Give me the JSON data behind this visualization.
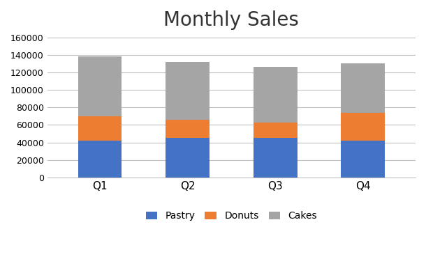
{
  "categories": [
    "Q1",
    "Q2",
    "Q3",
    "Q4"
  ],
  "pastry": [
    42000,
    45000,
    45000,
    42000
  ],
  "donuts": [
    28000,
    21000,
    18000,
    32000
  ],
  "cakes": [
    68000,
    66000,
    63000,
    56000
  ],
  "colors": {
    "Pastry": "#4472C4",
    "Donuts": "#ED7D31",
    "Cakes": "#A5A5A5"
  },
  "title": "Monthly Sales",
  "title_fontsize": 20,
  "ylabel": "",
  "xlabel": "",
  "ylim": [
    0,
    160000
  ],
  "yticks": [
    0,
    20000,
    40000,
    60000,
    80000,
    100000,
    120000,
    140000,
    160000
  ],
  "legend_labels": [
    "Pastry",
    "Donuts",
    "Cakes"
  ],
  "background_color": "#FFFFFF",
  "plot_bg_color": "#FFFFFF",
  "grid_color": "#C0C0C0",
  "bar_width": 0.5
}
